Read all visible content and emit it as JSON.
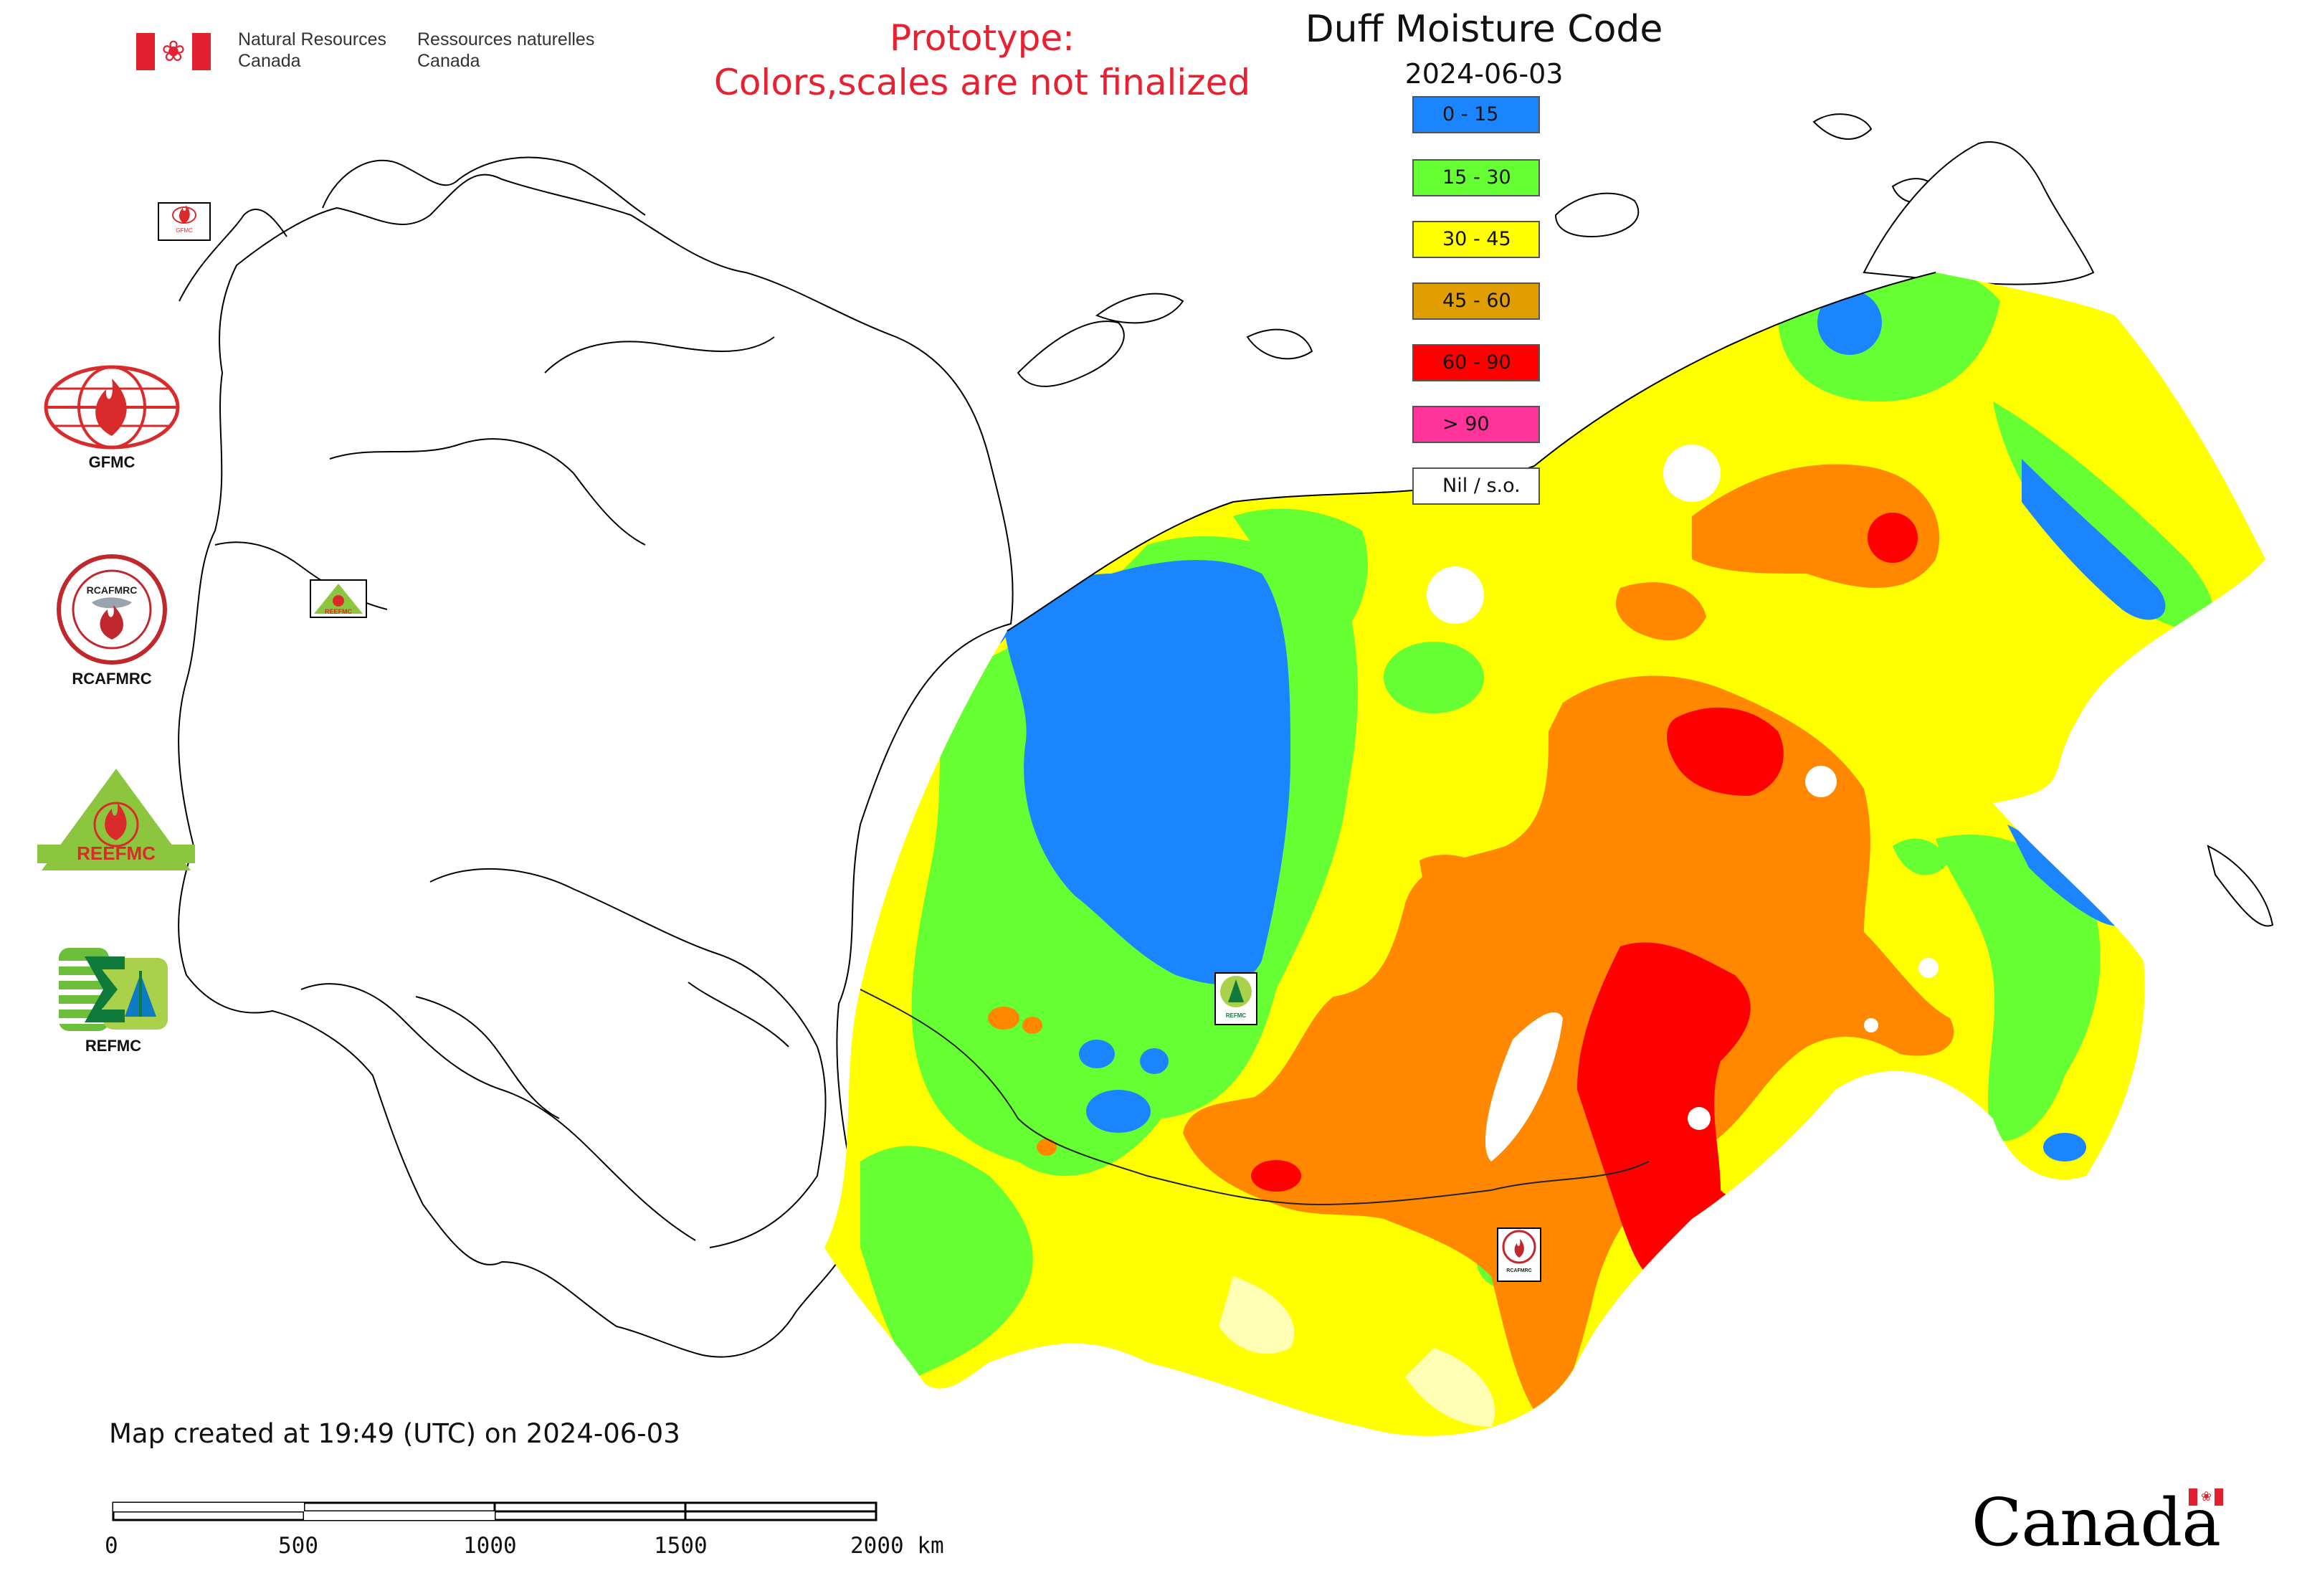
{
  "header": {
    "agency_en_line1": "Natural Resources",
    "agency_en_line2": "Canada",
    "agency_fr_line1": "Ressources naturelles",
    "agency_fr_line2": "Canada",
    "prototype_line1": "Prototype:",
    "prototype_line2": "Colors,scales are not finalized"
  },
  "map": {
    "title": "Duff Moisture Code",
    "date": "2024-06-03",
    "legend": [
      {
        "label": "0 - 15",
        "color": "#1a85ff"
      },
      {
        "label": "15 - 30",
        "color": "#66ff33"
      },
      {
        "label": "30 - 45",
        "color": "#ffff00"
      },
      {
        "label": "45 - 60",
        "color": "#e19e00"
      },
      {
        "label": "60 - 90",
        "color": "#ff0000"
      },
      {
        "label": "> 90",
        "color": "#ff3399"
      },
      {
        "label": "Nil / s.o.",
        "color": "#ffffff"
      }
    ],
    "created_note": "Map created at 19:49 (UTC) on 2024-06-03",
    "scale_ticks": [
      "0",
      "500",
      "1000",
      "1500",
      "2000 km"
    ]
  },
  "logos": [
    {
      "caption": "GFMC",
      "icon": "gfmc-globe-flame-icon"
    },
    {
      "caption": "RCAFMRC",
      "icon": "rcafmrc-seal-icon"
    },
    {
      "caption": "REEFMC",
      "icon": "reefmc-triangle-icon"
    },
    {
      "caption": "REFMC",
      "icon": "refmc-sigma-icon"
    }
  ],
  "map_markers": [
    {
      "caption": "GFMC"
    },
    {
      "caption": "REEFMC"
    },
    {
      "caption": "REFMC"
    },
    {
      "caption": "RCAFMRC"
    }
  ],
  "footer": {
    "wordmark": "Canada"
  }
}
